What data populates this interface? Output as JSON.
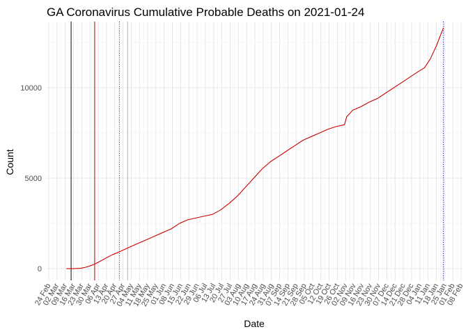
{
  "chart_data": {
    "type": "line",
    "title": "GA Coronavirus Cumulative Probable Deaths on 2021-01-24",
    "xlabel": "Date",
    "ylabel": "Count",
    "x_type": "date",
    "xlim": [
      "2020-02-24",
      "2021-02-08"
    ],
    "ylim": [
      0,
      13000
    ],
    "grid": true,
    "legend": "none",
    "y_ticks": [
      0,
      5000,
      10000
    ],
    "y_tick_labels": [
      "0",
      "5000",
      "10000"
    ],
    "x_ticks": [
      "2020-02-24",
      "2020-03-02",
      "2020-03-09",
      "2020-03-16",
      "2020-03-23",
      "2020-03-30",
      "2020-04-06",
      "2020-04-13",
      "2020-04-20",
      "2020-04-27",
      "2020-05-04",
      "2020-05-11",
      "2020-05-18",
      "2020-05-25",
      "2020-06-01",
      "2020-06-08",
      "2020-06-15",
      "2020-06-22",
      "2020-06-29",
      "2020-07-06",
      "2020-07-13",
      "2020-07-20",
      "2020-07-27",
      "2020-08-03",
      "2020-08-10",
      "2020-08-17",
      "2020-08-24",
      "2020-08-31",
      "2020-09-07",
      "2020-09-14",
      "2020-09-21",
      "2020-09-28",
      "2020-10-05",
      "2020-10-12",
      "2020-10-19",
      "2020-10-26",
      "2020-11-02",
      "2020-11-09",
      "2020-11-16",
      "2020-11-23",
      "2020-11-30",
      "2020-12-07",
      "2020-12-14",
      "2020-12-21",
      "2020-12-28",
      "2021-01-04",
      "2021-01-11",
      "2021-01-18",
      "2021-01-25",
      "2021-02-01",
      "2021-02-08"
    ],
    "x_tick_labels": [
      "24 Feb",
      "02 Mar",
      "09 Mar",
      "16 Mar",
      "23 Mar",
      "30 Mar",
      "06 Apr",
      "13 Apr",
      "20 Apr",
      "27 Apr",
      "04 May",
      "11 May",
      "18 May",
      "25 May",
      "01 Jun",
      "08 Jun",
      "15 Jun",
      "22 Jun",
      "29 Jun",
      "06 Jul",
      "13 Jul",
      "20 Jul",
      "27 Jul",
      "03 Aug",
      "10 Aug",
      "17 Aug",
      "24 Aug",
      "31 Aug",
      "07 Sep",
      "14 Sep",
      "21 Sep",
      "28 Sep",
      "05 Oct",
      "12 Oct",
      "19 Oct",
      "26 Oct",
      "02 Nov",
      "09 Nov",
      "16 Nov",
      "23 Nov",
      "30 Nov",
      "07 Dec",
      "14 Dec",
      "21 Dec",
      "28 Dec",
      "04 Jan",
      "11 Jan",
      "18 Jan",
      "25 Jan",
      "01 Feb",
      "08 Feb"
    ],
    "reference_lines": [
      {
        "date": "2020-03-14",
        "color": "#000000",
        "style": "solid"
      },
      {
        "date": "2020-04-03",
        "color": "#cc0000",
        "style": "solid"
      },
      {
        "date": "2020-04-24",
        "color": "#cc0000",
        "style": "dotted"
      },
      {
        "date": "2020-05-01",
        "color": "#e8a0a0",
        "style": "solid"
      },
      {
        "date": "2021-01-24",
        "color": "#0000aa",
        "style": "dotted"
      }
    ],
    "series": [
      {
        "color": "#cc0000",
        "x": [
          "2020-03-10",
          "2020-03-16",
          "2020-03-22",
          "2020-03-26",
          "2020-03-30",
          "2020-04-03",
          "2020-04-08",
          "2020-04-13",
          "2020-04-18",
          "2020-04-23",
          "2020-04-28",
          "2020-05-03",
          "2020-05-10",
          "2020-05-17",
          "2020-05-24",
          "2020-05-31",
          "2020-06-07",
          "2020-06-14",
          "2020-06-21",
          "2020-06-28",
          "2020-07-05",
          "2020-07-12",
          "2020-07-19",
          "2020-07-26",
          "2020-08-02",
          "2020-08-09",
          "2020-08-16",
          "2020-08-23",
          "2020-08-30",
          "2020-09-06",
          "2020-09-13",
          "2020-09-20",
          "2020-09-27",
          "2020-10-04",
          "2020-10-11",
          "2020-10-18",
          "2020-10-25",
          "2020-11-01",
          "2020-11-03",
          "2020-11-08",
          "2020-11-15",
          "2020-11-22",
          "2020-11-29",
          "2020-12-06",
          "2020-12-13",
          "2020-12-20",
          "2020-12-27",
          "2021-01-03",
          "2021-01-08",
          "2021-01-13",
          "2021-01-18",
          "2021-01-24"
        ],
        "y": [
          0,
          0,
          20,
          70,
          150,
          250,
          420,
          600,
          770,
          900,
          1050,
          1200,
          1400,
          1600,
          1800,
          2000,
          2200,
          2500,
          2700,
          2800,
          2900,
          3000,
          3250,
          3600,
          4000,
          4500,
          5000,
          5500,
          5900,
          6200,
          6500,
          6800,
          7100,
          7300,
          7500,
          7700,
          7850,
          7950,
          8400,
          8750,
          8950,
          9200,
          9400,
          9700,
          10000,
          10300,
          10600,
          10900,
          11100,
          11600,
          12300,
          13300
        ]
      }
    ]
  }
}
